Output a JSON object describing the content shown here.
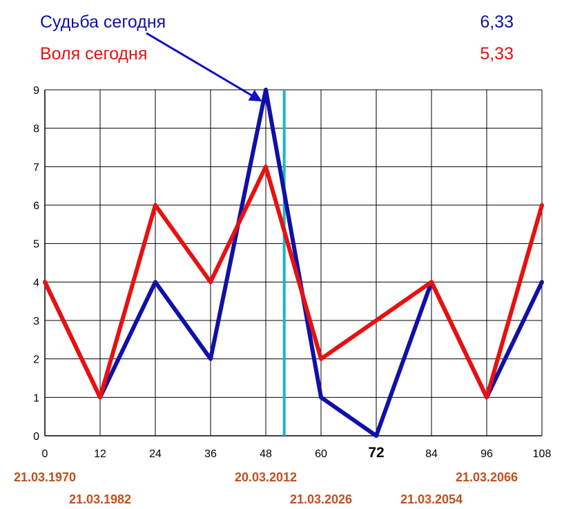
{
  "chart_data": {
    "type": "line",
    "x": [
      0,
      12,
      24,
      36,
      48,
      60,
      72,
      84,
      96,
      108
    ],
    "x_tick_labels": [
      "0",
      "12",
      "24",
      "36",
      "48",
      "60",
      "72",
      "84",
      "96",
      "108"
    ],
    "highlighted_x_tick": "72",
    "y_ticks": [
      "0",
      "1",
      "2",
      "3",
      "4",
      "5",
      "6",
      "7",
      "8",
      "9"
    ],
    "xlim": [
      0,
      108
    ],
    "ylim": [
      0,
      9
    ],
    "grid": true,
    "current_x": 52,
    "series": [
      {
        "name": "Судьба сегодня",
        "value_today": "6,33",
        "color": "#1010a8",
        "values": [
          4,
          1,
          4,
          2,
          9,
          1,
          0,
          4,
          1,
          4
        ]
      },
      {
        "name": "Воля сегодня",
        "value_today": "5,33",
        "color": "#e81010",
        "values": [
          4,
          1,
          6,
          4,
          7,
          2,
          3,
          4,
          1,
          6
        ]
      }
    ],
    "marker_color": "#19b8c0",
    "date_color": "#c0501e",
    "date_labels": [
      {
        "x": 0,
        "text": "21.03.1970",
        "row": 0
      },
      {
        "x": 12,
        "text": "21.03.1982",
        "row": 1
      },
      {
        "x": 48,
        "text": "20.03.2012",
        "row": 0
      },
      {
        "x": 60,
        "text": "21.03.2026",
        "row": 1
      },
      {
        "x": 84,
        "text": "21.03.2054",
        "row": 1
      },
      {
        "x": 96,
        "text": "21.03.2066",
        "row": 0
      }
    ]
  }
}
